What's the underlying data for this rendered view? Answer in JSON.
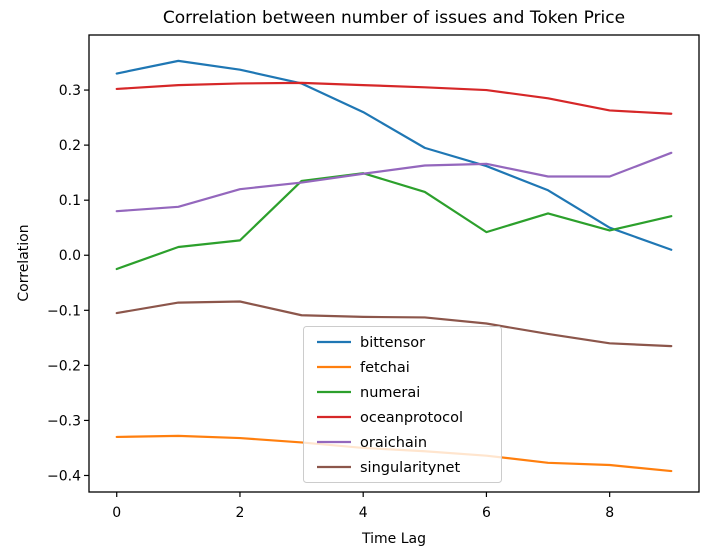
{
  "chart_data": {
    "type": "line",
    "title": "Correlation between number of issues and Token Price",
    "xlabel": "Time Lag",
    "ylabel": "Correlation",
    "x": [
      0,
      1,
      2,
      3,
      4,
      5,
      6,
      7,
      8,
      9
    ],
    "series": [
      {
        "name": "bittensor",
        "color": "#1f77b4",
        "values": [
          0.33,
          0.353,
          0.337,
          0.312,
          0.26,
          0.195,
          0.162,
          0.118,
          0.05,
          0.01
        ]
      },
      {
        "name": "fetchai",
        "color": "#ff7f0e",
        "values": [
          -0.33,
          -0.328,
          -0.332,
          -0.34,
          -0.35,
          -0.356,
          -0.364,
          -0.377,
          -0.381,
          -0.392
        ]
      },
      {
        "name": "numerai",
        "color": "#2ca02c",
        "values": [
          -0.025,
          0.015,
          0.027,
          0.135,
          0.149,
          0.115,
          0.042,
          0.076,
          0.045,
          0.071
        ]
      },
      {
        "name": "oceanprotocol",
        "color": "#d62728",
        "values": [
          0.302,
          0.309,
          0.312,
          0.313,
          0.309,
          0.305,
          0.3,
          0.285,
          0.263,
          0.257
        ]
      },
      {
        "name": "oraichain",
        "color": "#9467bd",
        "values": [
          0.08,
          0.088,
          0.12,
          0.132,
          0.148,
          0.163,
          0.166,
          0.143,
          0.143,
          0.186
        ]
      },
      {
        "name": "singularitynet",
        "color": "#8c564b",
        "values": [
          -0.105,
          -0.086,
          -0.084,
          -0.109,
          -0.112,
          -0.113,
          -0.124,
          -0.143,
          -0.16,
          -0.165
        ]
      }
    ],
    "xlim": [
      -0.45,
      9.45
    ],
    "ylim": [
      -0.43,
      0.4
    ],
    "xticks": {
      "values": [
        0,
        2,
        4,
        6,
        8
      ],
      "labels": [
        "0",
        "2",
        "4",
        "6",
        "8"
      ]
    },
    "yticks": {
      "values": [
        0.3,
        0.2,
        0.1,
        0.0,
        -0.1,
        -0.2,
        -0.3,
        -0.4
      ],
      "labels": [
        "0.3",
        "0.2",
        "0.1",
        "0.0",
        "−0.1",
        "−0.2",
        "−0.3",
        "−0.4"
      ]
    },
    "grid": false,
    "legend": {
      "location": "inside lower-center-right",
      "entries": [
        "bittensor",
        "fetchai",
        "numerai",
        "oceanprotocol",
        "oraichain",
        "singularitynet"
      ]
    },
    "axis_color": "#000000",
    "legend_border_color": "#cccccc",
    "background_color": "#ffffff"
  }
}
